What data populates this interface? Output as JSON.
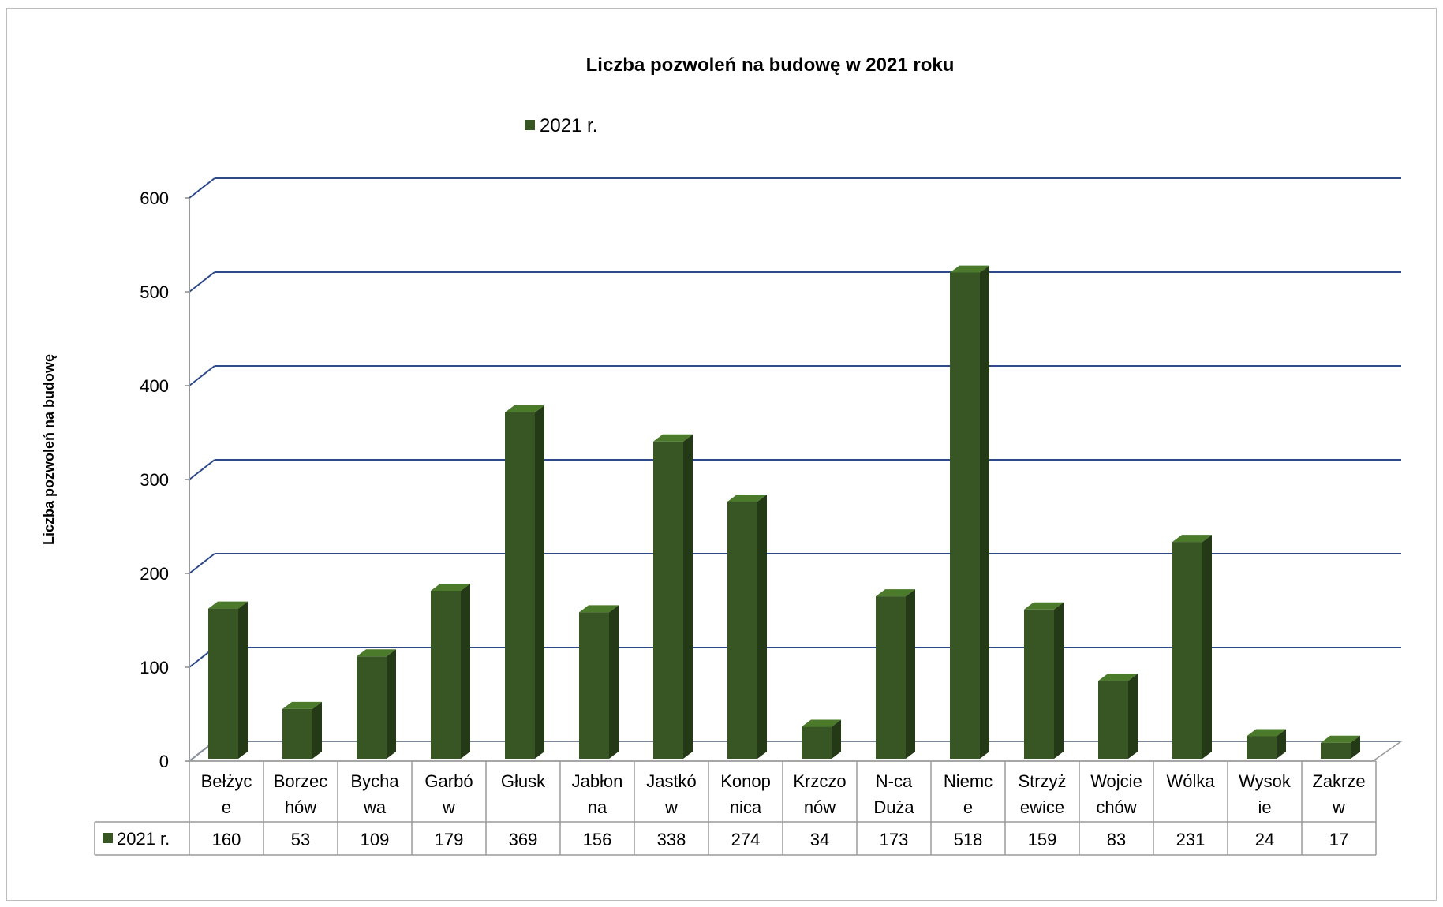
{
  "chart_data": {
    "type": "bar",
    "title": "Liczba pozwoleń na budowę w 2021 roku",
    "xlabel": "",
    "ylabel": "Liczba pozwoleń na budowę",
    "ylim": [
      0,
      600
    ],
    "yticks": [
      "0",
      "100",
      "200",
      "300",
      "400",
      "500",
      "600"
    ],
    "categories": [
      [
        "Bełżyc",
        "e"
      ],
      [
        "Borzec",
        "hów"
      ],
      [
        "Bycha",
        "wa"
      ],
      [
        "Garbó",
        "w"
      ],
      [
        "Głusk"
      ],
      [
        "Jabłon",
        "na"
      ],
      [
        "Jastkó",
        "w"
      ],
      [
        "Konop",
        "nica"
      ],
      [
        "Krzczo",
        "nów"
      ],
      [
        "N-ca",
        "Duża"
      ],
      [
        "Niemc",
        "e"
      ],
      [
        "Strzyż",
        "ewice"
      ],
      [
        "Wojcie",
        "chów"
      ],
      [
        "Wólka"
      ],
      [
        "Wysok",
        "ie"
      ],
      [
        "Zakrze",
        "w"
      ]
    ],
    "series": [
      {
        "name": "2021 r.",
        "values": [
          160,
          53,
          109,
          179,
          369,
          156,
          338,
          274,
          34,
          173,
          518,
          159,
          83,
          231,
          24,
          17
        ]
      }
    ],
    "legend_position": "top",
    "grid": true,
    "data_table": true,
    "colors": {
      "bar_front": "#375623",
      "bar_side": "#243a16",
      "bar_top": "#4a7a2a",
      "grid": "#2e4a8a"
    }
  }
}
